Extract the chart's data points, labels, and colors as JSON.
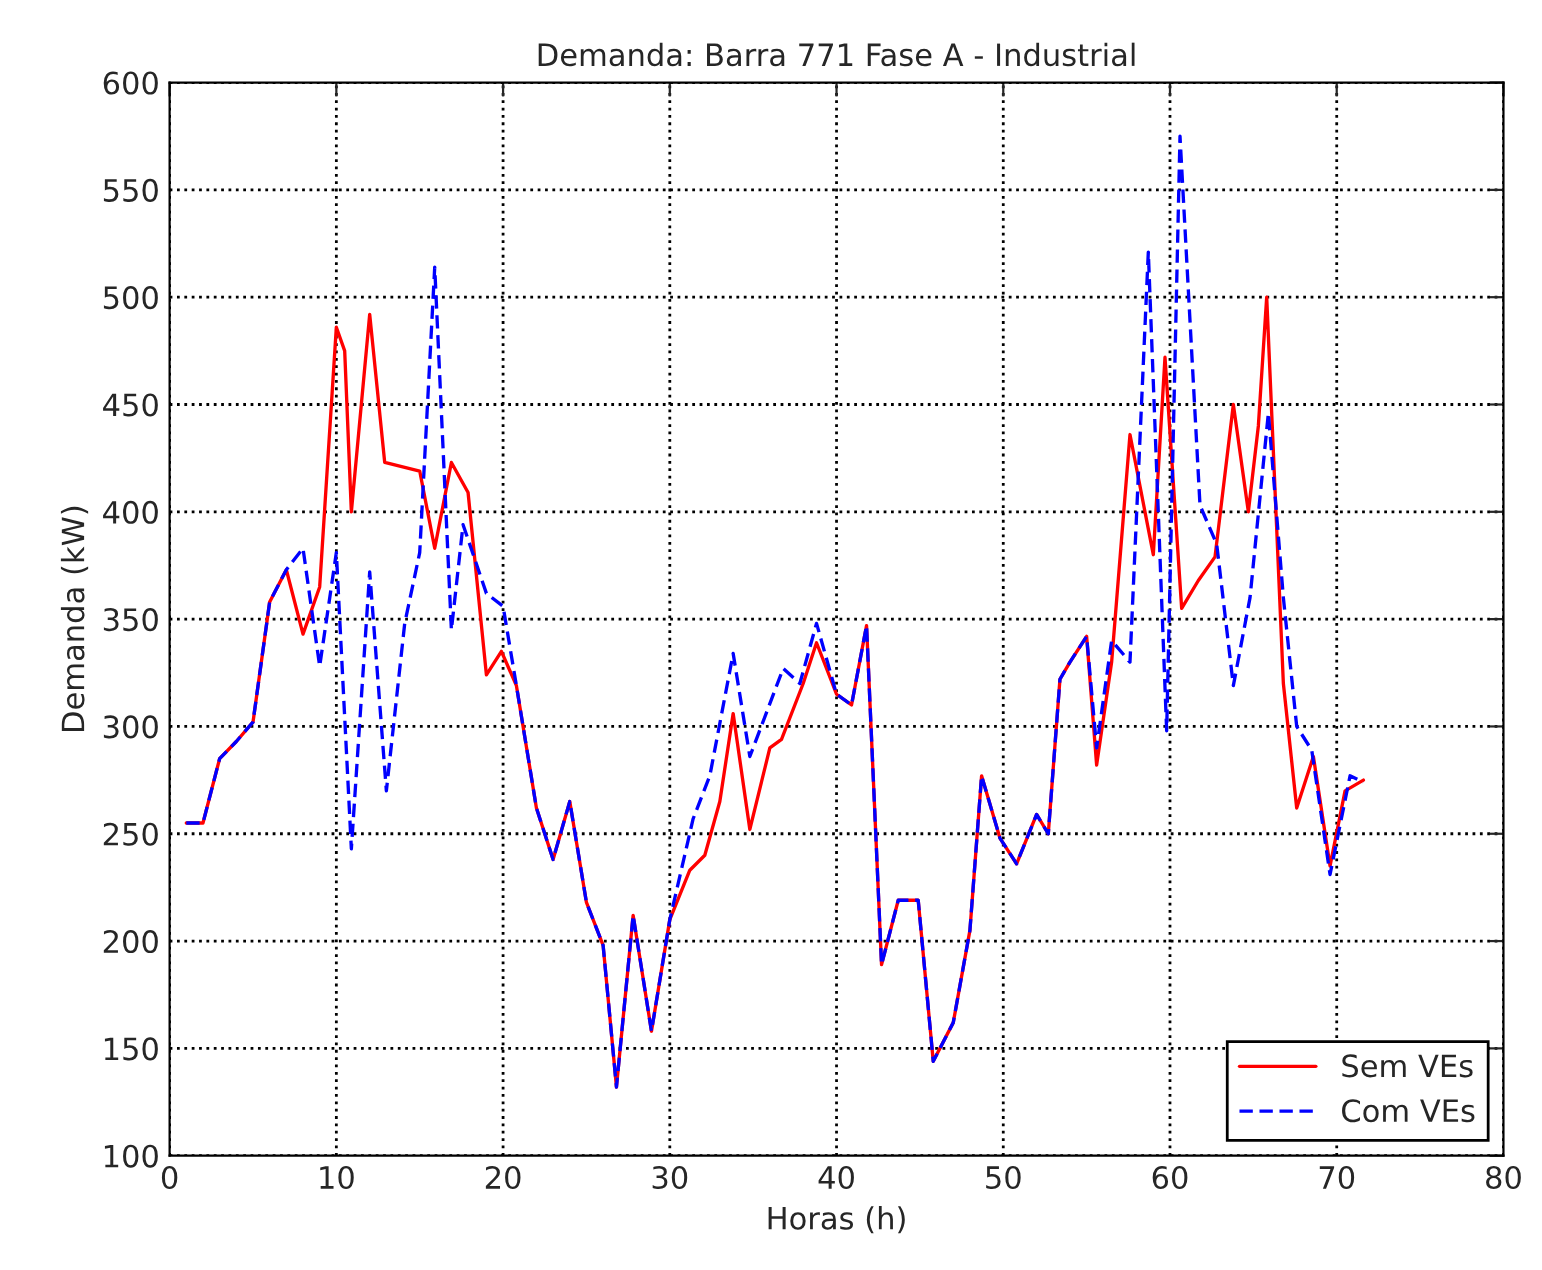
{
  "chart_data": {
    "type": "line",
    "title": "Demanda: Barra 771 Fase A - Industrial",
    "xlabel": "Horas (h)",
    "ylabel": "Demanda (kW)",
    "xlim": [
      0,
      80
    ],
    "xticks": [
      0,
      10,
      20,
      30,
      40,
      50,
      60,
      70,
      80
    ],
    "ylim": [
      100,
      600
    ],
    "yticks": [
      100,
      150,
      200,
      250,
      300,
      350,
      400,
      450,
      500,
      550,
      600
    ],
    "grid": true,
    "legend": "bottom right",
    "series": [
      {
        "name": "Sem VEs",
        "color": "#ff0000",
        "line_style": "solid",
        "x": [
          1,
          2,
          3,
          4,
          5,
          6,
          7,
          8,
          9,
          10,
          10.5,
          10.9,
          12,
          12.9,
          15,
          15.9,
          16.9,
          17.9,
          19,
          19.9,
          20.8,
          22,
          23,
          24,
          25,
          26,
          26.8,
          27.8,
          28.9,
          30,
          31.2,
          32.1,
          33,
          33.8,
          34.8,
          36,
          36.7,
          38,
          38.8,
          40,
          40.9,
          41.8,
          42.7,
          43.7,
          44.9,
          45.8,
          47,
          48,
          48.7,
          49.8,
          50.8,
          52,
          52.7,
          53.4,
          54,
          55,
          55.6,
          56.5,
          57.6,
          58.5,
          59,
          59.7,
          60.7,
          61.7,
          62.7,
          63.8,
          64.7,
          65.3,
          65.8,
          66.8,
          67.6,
          68.6,
          69.6,
          70.5,
          71.6
        ],
        "values": [
          255,
          255,
          285,
          293,
          302,
          358,
          373,
          343,
          365,
          486,
          475,
          400,
          492,
          423,
          419,
          383,
          423,
          409,
          324,
          335,
          319,
          262,
          238,
          265,
          218,
          198,
          132,
          212,
          158,
          210,
          233,
          240,
          265,
          306,
          252,
          290,
          294,
          320,
          339,
          315,
          310,
          347,
          189,
          219,
          219,
          144,
          162,
          205,
          277,
          248,
          236,
          259,
          250,
          322,
          330,
          342,
          282,
          330,
          436,
          400,
          380,
          472,
          355,
          368,
          379,
          450,
          400,
          440,
          500,
          320,
          262,
          286,
          235,
          270,
          275
        ]
      },
      {
        "name": "Com VEs",
        "color": "#0000ff",
        "line_style": "dashed",
        "x": [
          1,
          2,
          3,
          4,
          5,
          6,
          7,
          8,
          9,
          10,
          10.9,
          12,
          13,
          14.1,
          15,
          15.9,
          16.9,
          17.6,
          19,
          20,
          20.8,
          22,
          23,
          24,
          25,
          26,
          26.8,
          27.8,
          28.9,
          30,
          31.4,
          32.4,
          33.8,
          34.8,
          36.8,
          37.8,
          38.8,
          40,
          40.9,
          41.8,
          42.7,
          43.7,
          44.9,
          45.8,
          47,
          48,
          48.7,
          49.8,
          50.8,
          52,
          52.7,
          53.4,
          54,
          55,
          55.6,
          56.5,
          57.6,
          58.7,
          59.8,
          60.6,
          61.8,
          62.8,
          63.8,
          64.8,
          65.9,
          66.8,
          67.6,
          68.5,
          69.6,
          70.8,
          71.6
        ],
        "values": [
          255,
          255,
          285,
          293,
          302,
          358,
          373,
          383,
          328,
          381,
          243,
          372,
          270,
          348,
          381,
          514,
          345,
          394,
          362,
          356,
          319,
          262,
          238,
          265,
          218,
          198,
          132,
          212,
          158,
          210,
          257,
          277,
          334,
          286,
          327,
          320,
          348,
          315,
          310,
          347,
          189,
          219,
          219,
          144,
          162,
          205,
          277,
          248,
          236,
          259,
          250,
          322,
          330,
          342,
          290,
          340,
          330,
          521,
          298,
          575,
          403,
          385,
          319,
          360,
          446,
          360,
          300,
          289,
          231,
          277,
          274
        ]
      }
    ]
  }
}
